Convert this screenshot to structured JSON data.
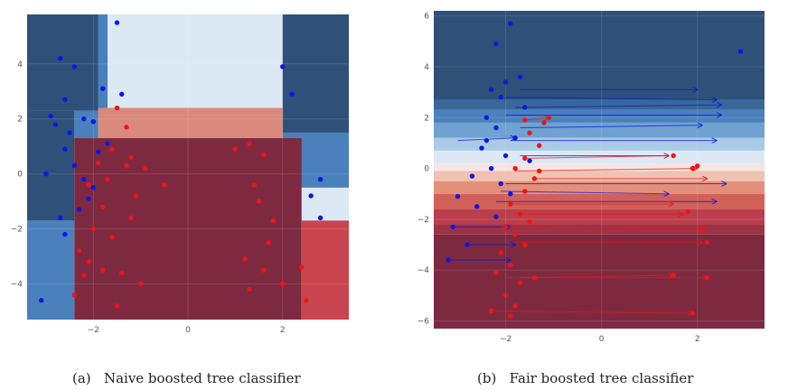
{
  "captions": {
    "a": "(a)   Naive boosted tree classifier",
    "b": "(b)   Fair boosted tree classifier"
  },
  "colors": {
    "dark_blue": "#2f5078",
    "mid_blue": "#4a80bb",
    "light_blue": "#dce9f5",
    "dark_red": "#7d2a40",
    "mid_red": "#c9454f",
    "point_blue": "#0b17e6",
    "point_red": "#f01414"
  },
  "chart_data": [
    {
      "id": "a",
      "type": "scatter",
      "title": "",
      "xlabel": "",
      "ylabel": "",
      "xlim": [
        -3.4,
        3.4
      ],
      "ylim": [
        -5.3,
        5.8
      ],
      "x_ticks": [
        -2,
        0,
        2
      ],
      "y_ticks": [
        -4,
        -2,
        0,
        2,
        4
      ],
      "x_tick_labels": [
        "−2",
        "0",
        "2"
      ],
      "y_tick_labels": [
        "−4",
        "−2",
        "0",
        "2",
        "4"
      ],
      "background": "decision regions of boosted tree (blue = class 0, red = class 1)",
      "regions": [
        {
          "x": [
            -3.4,
            -1.9
          ],
          "y": [
            2.3,
            5.8
          ],
          "color": "dark_blue"
        },
        {
          "x": [
            -1.9,
            -1.7
          ],
          "y": [
            2.3,
            5.8
          ],
          "color": "mid_blue"
        },
        {
          "x": [
            -1.7,
            2.0
          ],
          "y": [
            2.4,
            5.8
          ],
          "color": "light_blue"
        },
        {
          "x": [
            2.0,
            3.4
          ],
          "y": [
            1.5,
            5.8
          ],
          "color": "dark_blue"
        },
        {
          "x": [
            -3.4,
            -2.4
          ],
          "y": [
            -1.7,
            2.3
          ],
          "color": "dark_blue"
        },
        {
          "x": [
            -3.4,
            -2.4
          ],
          "y": [
            -5.3,
            -1.7
          ],
          "color": "mid_blue"
        },
        {
          "x": [
            -2.4,
            -1.9
          ],
          "y": [
            1.3,
            2.3
          ],
          "color": "mid_blue"
        },
        {
          "x": [
            -1.9,
            2.0
          ],
          "y": [
            1.3,
            2.4
          ],
          "color": "pink"
        },
        {
          "x": [
            2.0,
            3.4
          ],
          "y": [
            -1.7,
            1.5
          ],
          "color": "mid_blue"
        },
        {
          "x": [
            2.4,
            3.4
          ],
          "y": [
            -1.7,
            -0.5
          ],
          "color": "light_blue"
        },
        {
          "x": [
            -2.4,
            2.4
          ],
          "y": [
            -5.3,
            1.3
          ],
          "color": "dark_red"
        },
        {
          "x": [
            2.4,
            3.4
          ],
          "y": [
            -5.3,
            -1.7
          ],
          "color": "mid_red"
        }
      ],
      "series": [
        {
          "class": "blue",
          "points": [
            [
              -2.7,
              4.2
            ],
            [
              -2.6,
              2.7
            ],
            [
              -2.4,
              3.9
            ],
            [
              -1.5,
              5.5
            ],
            [
              -1.8,
              3.1
            ],
            [
              -1.4,
              2.9
            ],
            [
              -2.9,
              2.1
            ],
            [
              -2.8,
              1.8
            ],
            [
              -2.5,
              1.5
            ],
            [
              -2.2,
              2.0
            ],
            [
              -2.0,
              1.9
            ],
            [
              -1.7,
              1.1
            ],
            [
              -2.6,
              0.9
            ],
            [
              -3.0,
              0.0
            ],
            [
              -2.2,
              -0.2
            ],
            [
              -2.0,
              -0.5
            ],
            [
              -2.3,
              -1.3
            ],
            [
              -2.7,
              -1.6
            ],
            [
              -2.6,
              -2.2
            ],
            [
              -2.1,
              -0.9
            ],
            [
              -3.1,
              -4.6
            ],
            [
              -1.9,
              0.8
            ],
            [
              2.0,
              3.9
            ],
            [
              2.2,
              2.9
            ],
            [
              2.8,
              -0.2
            ],
            [
              2.6,
              -0.8
            ],
            [
              2.8,
              -1.6
            ],
            [
              -2.4,
              0.3
            ]
          ]
        },
        {
          "class": "red",
          "points": [
            [
              -1.5,
              2.4
            ],
            [
              -1.3,
              1.7
            ],
            [
              -1.2,
              0.6
            ],
            [
              -1.9,
              0.4
            ],
            [
              -2.1,
              -0.4
            ],
            [
              -1.8,
              -1.2
            ],
            [
              -2.0,
              -2.0
            ],
            [
              -2.3,
              -2.8
            ],
            [
              -2.1,
              -3.2
            ],
            [
              -1.8,
              -3.5
            ],
            [
              -1.4,
              -3.6
            ],
            [
              -1.0,
              -4.0
            ],
            [
              -1.5,
              -4.8
            ],
            [
              -1.1,
              -0.8
            ],
            [
              -0.9,
              0.2
            ],
            [
              -1.2,
              -1.6
            ],
            [
              -1.6,
              -2.3
            ],
            [
              -2.2,
              -3.7
            ],
            [
              -2.4,
              -4.4
            ],
            [
              -0.5,
              -0.4
            ],
            [
              1.0,
              0.9
            ],
            [
              1.3,
              1.1
            ],
            [
              1.6,
              0.7
            ],
            [
              1.4,
              -0.4
            ],
            [
              1.5,
              -1.0
            ],
            [
              1.8,
              -1.7
            ],
            [
              1.7,
              -2.5
            ],
            [
              1.2,
              -3.1
            ],
            [
              1.6,
              -3.5
            ],
            [
              2.0,
              -4.0
            ],
            [
              1.3,
              -4.2
            ],
            [
              2.4,
              -3.4
            ],
            [
              2.5,
              -4.6
            ],
            [
              -1.6,
              0.9
            ],
            [
              -1.3,
              0.3
            ],
            [
              -1.7,
              -0.2
            ]
          ]
        }
      ]
    },
    {
      "id": "b",
      "type": "scatter",
      "title": "",
      "xlabel": "",
      "ylabel": "",
      "xlim": [
        -3.5,
        3.4
      ],
      "ylim": [
        -6.3,
        6.2
      ],
      "x_ticks": [
        -2,
        0,
        2
      ],
      "y_ticks": [
        -6,
        -4,
        -2,
        0,
        2,
        4,
        6
      ],
      "x_tick_labels": [
        "−2",
        "0",
        "2"
      ],
      "y_tick_labels": [
        "−6",
        "−4",
        "−2",
        "0",
        "2",
        "4",
        "6"
      ],
      "background": "horizontal decision bands of fair boosted tree, blue at top to red at bottom",
      "bands": [
        {
          "y": [
            2.7,
            6.2
          ],
          "color": "#2f5078"
        },
        {
          "y": [
            2.3,
            2.7
          ],
          "color": "#3a6799"
        },
        {
          "y": [
            1.8,
            2.3
          ],
          "color": "#4a80bb"
        },
        {
          "y": [
            1.2,
            1.8
          ],
          "color": "#6fa2d0"
        },
        {
          "y": [
            0.7,
            1.2
          ],
          "color": "#a9cbe6"
        },
        {
          "y": [
            0.2,
            0.7
          ],
          "color": "#dce9f5"
        },
        {
          "y": [
            -0.1,
            0.2
          ],
          "color": "#f5e5e2"
        },
        {
          "y": [
            -0.5,
            -0.1
          ],
          "color": "#f0c2b3"
        },
        {
          "y": [
            -1.0,
            -0.5
          ],
          "color": "#e48f7a"
        },
        {
          "y": [
            -1.6,
            -1.0
          ],
          "color": "#d06058"
        },
        {
          "y": [
            -2.2,
            -1.6
          ],
          "color": "#bb3e4c"
        },
        {
          "y": [
            -2.6,
            -2.2
          ],
          "color": "#9e3346"
        },
        {
          "y": [
            -6.3,
            -2.6
          ],
          "color": "#7d2a40"
        }
      ],
      "series": [
        {
          "class": "blue",
          "points": [
            [
              -1.9,
              5.7
            ],
            [
              -2.2,
              4.9
            ],
            [
              -1.7,
              3.6
            ],
            [
              -2.0,
              3.4
            ],
            [
              -2.3,
              3.1
            ],
            [
              -2.1,
              2.8
            ],
            [
              -1.6,
              2.4
            ],
            [
              -2.4,
              2.0
            ],
            [
              -2.2,
              1.6
            ],
            [
              -1.8,
              1.2
            ],
            [
              -2.5,
              0.8
            ],
            [
              -2.0,
              0.5
            ],
            [
              -2.3,
              0.0
            ],
            [
              -2.7,
              -0.3
            ],
            [
              -2.1,
              -0.6
            ],
            [
              -1.9,
              -1.0
            ],
            [
              -2.6,
              -1.5
            ],
            [
              -2.2,
              -1.9
            ],
            [
              -3.0,
              -1.1
            ],
            [
              -3.1,
              -2.3
            ],
            [
              -2.8,
              -3.0
            ],
            [
              -3.2,
              -3.6
            ],
            [
              -2.4,
              1.1
            ],
            [
              -1.5,
              0.3
            ],
            [
              2.9,
              4.6
            ]
          ]
        },
        {
          "class": "red",
          "points": [
            [
              -1.6,
              1.9
            ],
            [
              -1.2,
              1.8
            ],
            [
              -1.5,
              1.4
            ],
            [
              -1.3,
              0.9
            ],
            [
              -1.6,
              0.4
            ],
            [
              -1.8,
              0.0
            ],
            [
              -1.4,
              -0.4
            ],
            [
              -1.6,
              -0.9
            ],
            [
              -1.9,
              -1.4
            ],
            [
              -1.7,
              -1.8
            ],
            [
              -2.0,
              -2.3
            ],
            [
              -1.8,
              -2.6
            ],
            [
              -1.6,
              -3.0
            ],
            [
              -2.1,
              -3.3
            ],
            [
              -1.9,
              -3.8
            ],
            [
              -2.2,
              -4.1
            ],
            [
              -1.7,
              -4.5
            ],
            [
              -2.0,
              -5.0
            ],
            [
              -1.8,
              -5.4
            ],
            [
              -1.9,
              -5.8
            ],
            [
              -1.1,
              2.0
            ],
            [
              -1.3,
              -0.1
            ],
            [
              -1.5,
              -2.1
            ],
            [
              -1.4,
              -4.3
            ],
            [
              -2.3,
              -5.6
            ],
            [
              1.5,
              0.5
            ],
            [
              1.9,
              0.0
            ],
            [
              1.8,
              -1.7
            ],
            [
              2.1,
              -2.4
            ],
            [
              2.2,
              -2.9
            ],
            [
              1.5,
              -4.2
            ],
            [
              2.2,
              -4.3
            ],
            [
              1.9,
              -5.7
            ],
            [
              2.0,
              0.1
            ]
          ]
        }
      ],
      "arrows": [
        {
          "from": [
            -1.7,
            3.1
          ],
          "to": [
            2.0,
            3.1
          ],
          "class": "blue"
        },
        {
          "from": [
            -2.0,
            2.8
          ],
          "to": [
            2.4,
            2.7
          ],
          "class": "blue"
        },
        {
          "from": [
            -1.8,
            2.4
          ],
          "to": [
            2.5,
            2.5
          ],
          "class": "blue"
        },
        {
          "from": [
            -2.0,
            2.1
          ],
          "to": [
            2.5,
            2.1
          ],
          "class": "blue"
        },
        {
          "from": [
            -1.7,
            1.6
          ],
          "to": [
            2.1,
            1.7
          ],
          "class": "blue"
        },
        {
          "from": [
            -1.9,
            1.1
          ],
          "to": [
            2.4,
            1.1
          ],
          "class": "blue"
        },
        {
          "from": [
            -3.0,
            1.1
          ],
          "to": [
            -1.8,
            1.2
          ],
          "class": "blue"
        },
        {
          "from": [
            -1.7,
            0.5
          ],
          "to": [
            1.4,
            0.5
          ],
          "class": "blue"
        },
        {
          "from": [
            -2.0,
            -0.6
          ],
          "to": [
            2.6,
            -0.6
          ],
          "class": "blue"
        },
        {
          "from": [
            -2.1,
            -0.9
          ],
          "to": [
            1.4,
            -1.0
          ],
          "class": "blue"
        },
        {
          "from": [
            -2.2,
            -1.3
          ],
          "to": [
            2.4,
            -1.3
          ],
          "class": "blue"
        },
        {
          "from": [
            -3.1,
            -2.3
          ],
          "to": [
            -1.9,
            -2.3
          ],
          "class": "blue"
        },
        {
          "from": [
            -2.8,
            -3.0
          ],
          "to": [
            -1.8,
            -3.0
          ],
          "class": "blue"
        },
        {
          "from": [
            -3.2,
            -3.6
          ],
          "to": [
            -1.9,
            -3.6
          ],
          "class": "blue"
        },
        {
          "from": [
            -1.6,
            1.9
          ],
          "to": [
            -1.1,
            2.0
          ],
          "class": "red"
        },
        {
          "from": [
            -1.6,
            0.4
          ],
          "to": [
            1.4,
            0.5
          ],
          "class": "red"
        },
        {
          "from": [
            -1.8,
            -0.1
          ],
          "to": [
            2.0,
            0.0
          ],
          "class": "red"
        },
        {
          "from": [
            -1.4,
            -0.4
          ],
          "to": [
            2.2,
            -0.4
          ],
          "class": "red"
        },
        {
          "from": [
            -1.9,
            -1.4
          ],
          "to": [
            1.5,
            -1.4
          ],
          "class": "red"
        },
        {
          "from": [
            -1.7,
            -1.8
          ],
          "to": [
            1.7,
            -1.8
          ],
          "class": "red"
        },
        {
          "from": [
            -2.0,
            -2.3
          ],
          "to": [
            2.2,
            -2.4
          ],
          "class": "red"
        },
        {
          "from": [
            -1.8,
            -2.9
          ],
          "to": [
            2.1,
            -2.9
          ],
          "class": "red"
        },
        {
          "from": [
            -1.7,
            -4.3
          ],
          "to": [
            1.5,
            -4.2
          ],
          "class": "red"
        },
        {
          "from": [
            -2.0,
            -4.3
          ],
          "to": [
            2.2,
            -4.3
          ],
          "class": "red"
        },
        {
          "from": [
            -2.3,
            -5.6
          ],
          "to": [
            1.9,
            -5.7
          ],
          "class": "red"
        }
      ]
    }
  ]
}
